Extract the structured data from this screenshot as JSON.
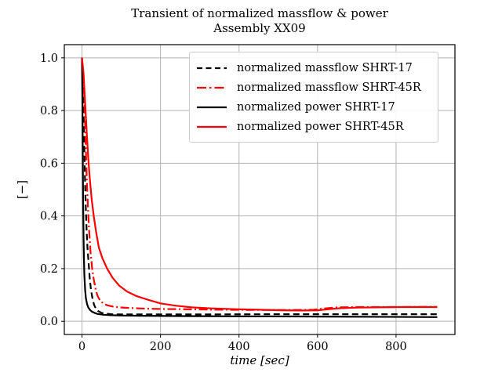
{
  "chart_data": {
    "type": "line",
    "title": "Transient of normalized massflow & power",
    "subtitle": "Assembly XX09",
    "xlabel": "time [sec]",
    "ylabel": "[−]",
    "xlim": [
      -45,
      950
    ],
    "ylim": [
      -0.05,
      1.05
    ],
    "xticks": [
      0,
      200,
      400,
      600,
      800
    ],
    "yticks": [
      0.0,
      0.2,
      0.4,
      0.6,
      0.8,
      1.0
    ],
    "grid": true,
    "grid_color": "#b3b3b3",
    "axis_color": "#000000",
    "legend_position": "upper center-right",
    "series": [
      {
        "name": "normalized massflow SHRT-17",
        "color": "#000000",
        "style": "dashed",
        "x": [
          0,
          2,
          4,
          6,
          8,
          10,
          12,
          14,
          17,
          20,
          23,
          27,
          31,
          36,
          42,
          50,
          60,
          75,
          95,
          130,
          200,
          300,
          500,
          700,
          905
        ],
        "y": [
          1.0,
          0.93,
          0.8,
          0.65,
          0.52,
          0.42,
          0.34,
          0.28,
          0.22,
          0.16,
          0.12,
          0.085,
          0.062,
          0.047,
          0.038,
          0.032,
          0.029,
          0.027,
          0.026,
          0.026,
          0.026,
          0.026,
          0.027,
          0.027,
          0.027
        ]
      },
      {
        "name": "normalized massflow SHRT-45R",
        "color": "#ff0000",
        "style": "dashdot",
        "x": [
          0,
          3,
          6,
          9,
          12,
          15,
          18,
          22,
          26,
          30,
          35,
          40,
          46,
          54,
          64,
          78,
          95,
          115,
          145,
          190,
          250,
          350,
          450,
          550,
          590,
          620,
          650,
          700,
          800,
          905
        ],
        "y": [
          1.0,
          0.95,
          0.85,
          0.7,
          0.55,
          0.44,
          0.35,
          0.26,
          0.2,
          0.16,
          0.12,
          0.096,
          0.079,
          0.068,
          0.061,
          0.056,
          0.053,
          0.051,
          0.049,
          0.047,
          0.046,
          0.044,
          0.043,
          0.043,
          0.044,
          0.049,
          0.053,
          0.054,
          0.054,
          0.055
        ]
      },
      {
        "name": "normalized power SHRT-17",
        "color": "#000000",
        "style": "solid",
        "x": [
          0,
          1,
          2,
          3,
          4,
          5,
          6,
          8,
          10,
          13,
          16,
          20,
          25,
          32,
          40,
          55,
          75,
          100,
          150,
          250,
          400,
          600,
          905
        ],
        "y": [
          1.0,
          0.85,
          0.63,
          0.45,
          0.32,
          0.24,
          0.18,
          0.12,
          0.088,
          0.065,
          0.053,
          0.044,
          0.037,
          0.032,
          0.028,
          0.025,
          0.023,
          0.022,
          0.021,
          0.02,
          0.019,
          0.018,
          0.016
        ]
      },
      {
        "name": "normalized power SHRT-45R",
        "color": "#ff0000",
        "style": "solid",
        "x": [
          0,
          4,
          8,
          12,
          16,
          20,
          25,
          30,
          36,
          43,
          52,
          64,
          78,
          95,
          115,
          140,
          170,
          200,
          240,
          280,
          330,
          390,
          450,
          510,
          560,
          600,
          630,
          660,
          700,
          800,
          905
        ],
        "y": [
          1.0,
          0.94,
          0.83,
          0.72,
          0.62,
          0.54,
          0.46,
          0.4,
          0.34,
          0.28,
          0.24,
          0.2,
          0.165,
          0.135,
          0.113,
          0.095,
          0.081,
          0.068,
          0.059,
          0.053,
          0.049,
          0.046,
          0.044,
          0.042,
          0.041,
          0.042,
          0.046,
          0.05,
          0.052,
          0.054,
          0.054
        ]
      }
    ]
  }
}
